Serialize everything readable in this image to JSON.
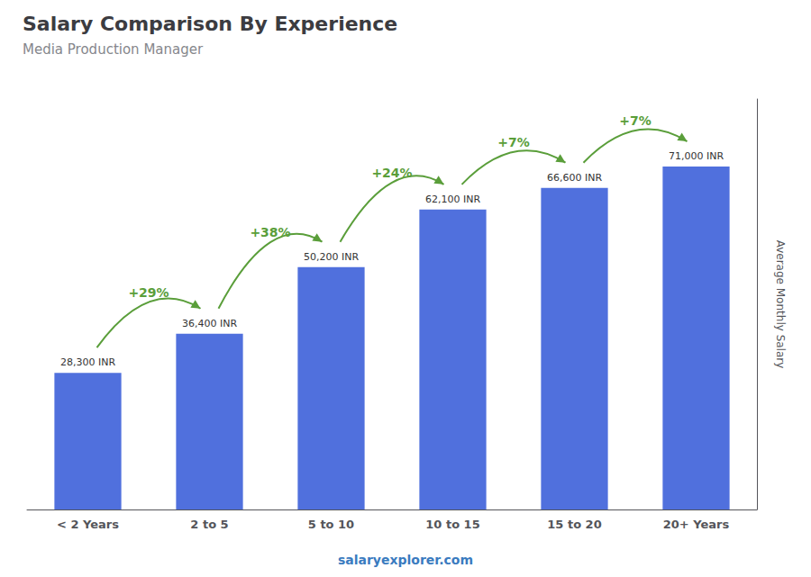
{
  "chart_data": {
    "type": "bar",
    "title": "Salary Comparison By Experience",
    "subtitle": "Media Production Manager",
    "y_label": "Average Monthly Salary",
    "categories": [
      "< 2 Years",
      "2 to 5",
      "5 to 10",
      "10 to 15",
      "15 to 20",
      "20+ Years"
    ],
    "values": [
      28300,
      36400,
      50200,
      62100,
      66600,
      71000
    ],
    "value_labels": [
      "28,300 INR",
      "36,400 INR",
      "50,200 INR",
      "62,100 INR",
      "66,600 INR",
      "71,000 INR"
    ],
    "data_labels": true,
    "annotations": [
      "+29%",
      "+38%",
      "+24%",
      "+7%",
      "+7%"
    ],
    "footer": "salaryexplorer.com",
    "ylim": [
      0,
      85000
    ],
    "grid": false,
    "tick_labels": "x"
  }
}
